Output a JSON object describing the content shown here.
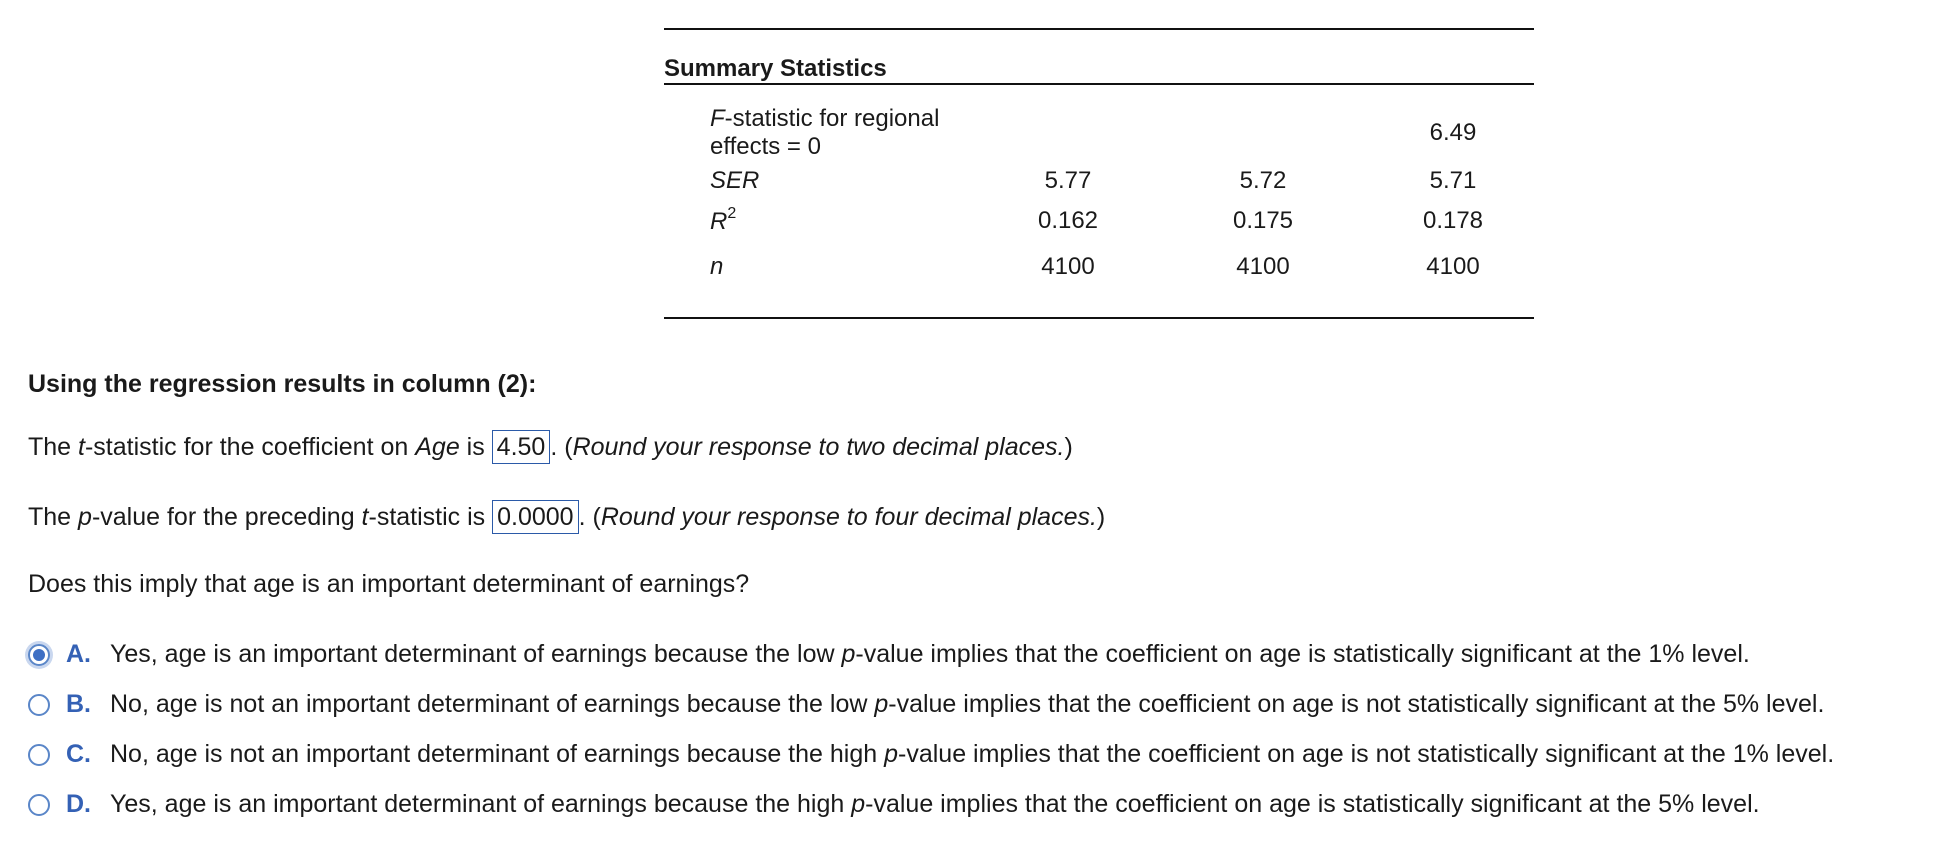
{
  "summary": {
    "title": "Summary Statistics",
    "rows": [
      {
        "label_prefix": "F",
        "label_rest": "-statistic for regional effects = 0",
        "c1": "",
        "c2": "",
        "c3": "6.49"
      },
      {
        "label": "SER",
        "c1": "5.77",
        "c2": "5.72",
        "c3": "5.71"
      },
      {
        "label_base": "R",
        "label_sup": "2",
        "c1": "0.162",
        "c2": "0.175",
        "c3": "0.178"
      },
      {
        "label": "n",
        "c1": "4100",
        "c2": "4100",
        "c3": "4100"
      }
    ]
  },
  "question": {
    "heading": "Using the regression results in column (2):",
    "t_line": {
      "pre1": "The ",
      "t_ital": "t",
      "pre2": "-statistic for the coefficient on ",
      "age_ital": "Age",
      "pre3": " is ",
      "answer": "4.50",
      "post1": ". (",
      "hint": "Round your response to two decimal places.",
      "post2": ")"
    },
    "p_line": {
      "pre1": "The ",
      "p_ital": "p",
      "pre2": "-value for the preceding ",
      "t_ital": "t",
      "pre3": "-statistic is ",
      "answer": "0.0000",
      "post1": ". (",
      "hint": "Round your response to four decimal places.",
      "post2": ")"
    },
    "prompt": "Does this imply that age is an important determinant of earnings?"
  },
  "options": [
    {
      "letter": "A.",
      "selected": true,
      "pre": "Yes, age is an important determinant of earnings because the low ",
      "ital": "p",
      "post": "-value implies that the coefficient on age is statistically significant at the 1% level."
    },
    {
      "letter": "B.",
      "selected": false,
      "pre": "No, age is not an important determinant of earnings because the low ",
      "ital": "p",
      "post": "-value implies that the coefficient on age is not statistically significant at the 5% level."
    },
    {
      "letter": "C.",
      "selected": false,
      "pre": "No, age is not an important determinant of earnings because the high ",
      "ital": "p",
      "post": "-value implies that the coefficient on age is not statistically significant at the 1% level."
    },
    {
      "letter": "D.",
      "selected": false,
      "pre": "Yes, age is an important determinant of earnings because the high ",
      "ital": "p",
      "post": "-value implies that the coefficient on age is statistically significant at the 5% level."
    }
  ],
  "colors": {
    "accent": "#3461b5",
    "radio_border": "#5a86c8",
    "answer_border": "#2b5aa8"
  }
}
